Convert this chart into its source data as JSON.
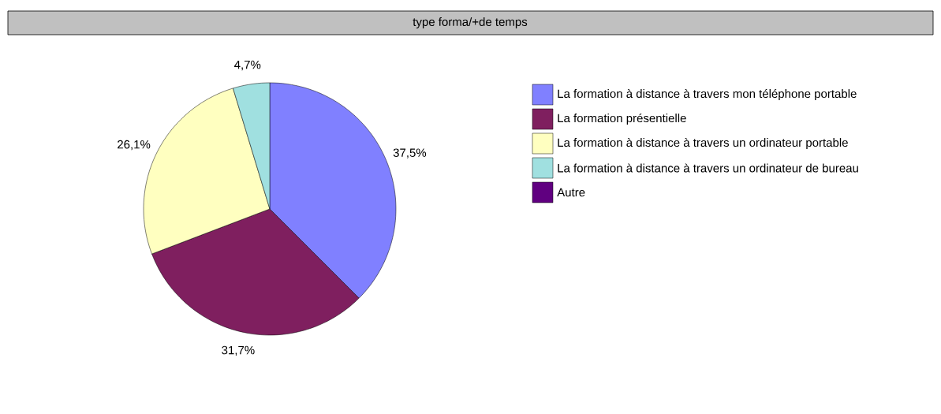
{
  "chart_data": {
    "type": "pie",
    "title": "type forma/+de temps",
    "categories": [
      "La formation à distance à travers mon téléphone portable",
      "La formation présentielle",
      "La formation à distance à travers un ordinateur portable",
      "La formation à distance à travers un ordinateur de bureau",
      "Autre"
    ],
    "values": [
      37.5,
      31.7,
      26.1,
      4.7,
      0
    ],
    "value_labels": [
      "37,5%",
      "31,7%",
      "26,1%",
      "4,7%",
      null
    ],
    "colors": [
      "#8080ff",
      "#7f1f5f",
      "#ffffc0",
      "#a0e0e0",
      "#600080"
    ],
    "legend": "right"
  }
}
